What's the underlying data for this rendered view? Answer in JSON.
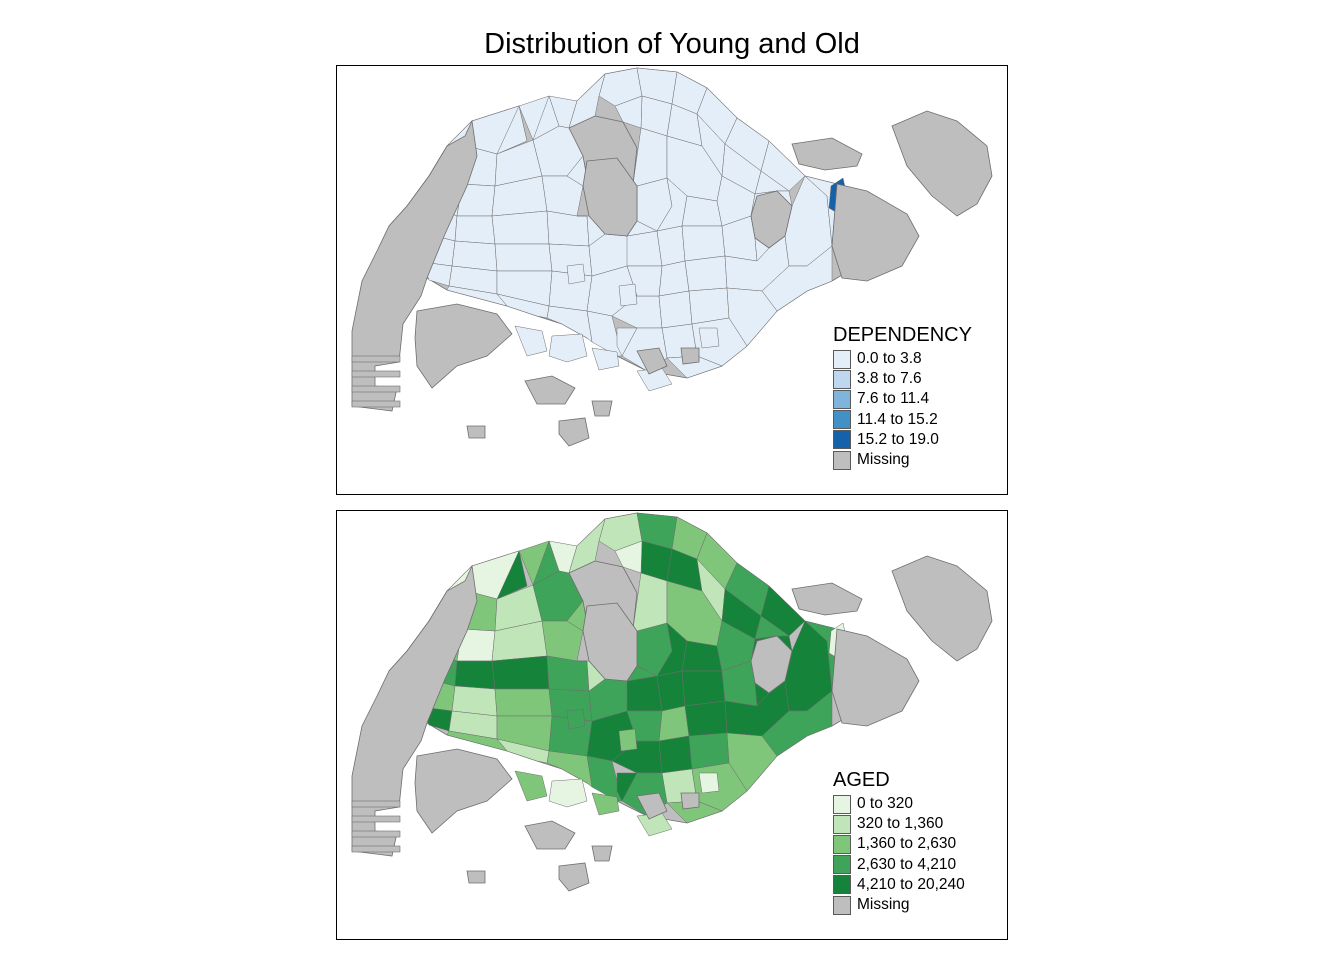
{
  "title": "Distribution of Young and Old",
  "colors": {
    "missing": "#bebebe",
    "border": "#6e6e6e",
    "sea": "#ffffff"
  },
  "maps": [
    {
      "variable": "DEPENDENCY",
      "legend": [
        {
          "label": "0.0 to 3.8",
          "color": "#e4eef9"
        },
        {
          "label": "3.8 to 7.6",
          "color": "#bdd7ee"
        },
        {
          "label": "7.6 to 11.4",
          "color": "#7fb4dc"
        },
        {
          "label": "11.4 to 15.2",
          "color": "#4190c6"
        },
        {
          "label": "15.2 to 19.0",
          "color": "#1562ab"
        },
        {
          "label": "Missing",
          "color": "#bebebe"
        }
      ],
      "zone_classes": [
        0,
        0,
        0,
        0,
        0,
        0,
        0,
        0,
        0,
        0,
        0,
        0,
        0,
        0,
        0,
        0,
        0,
        0,
        0,
        0,
        0,
        0,
        0,
        0,
        0,
        0,
        0,
        0,
        0,
        0,
        0,
        0,
        0,
        0,
        0,
        0,
        0,
        0,
        0,
        0,
        0,
        0,
        0,
        0,
        0,
        0,
        0,
        0,
        0,
        0,
        0,
        0,
        0,
        0,
        0,
        0,
        0,
        0,
        0,
        0,
        0,
        0,
        0,
        0,
        0,
        0,
        0,
        0,
        0,
        0,
        0,
        0,
        0,
        4,
        0,
        0,
        0,
        0,
        0,
        0,
        0,
        0,
        0,
        0,
        0,
        0,
        0,
        0
      ]
    },
    {
      "variable": "AGED",
      "legend": [
        {
          "label": "0 to 320",
          "color": "#e6f5e1"
        },
        {
          "label": "320 to 1,360",
          "color": "#bfe5b8"
        },
        {
          "label": "1,360 to 2,630",
          "color": "#7fc67b"
        },
        {
          "label": "2,630 to 4,210",
          "color": "#3ea45a"
        },
        {
          "label": "4,210 to 20,240",
          "color": "#16833b"
        },
        {
          "label": "Missing",
          "color": "#bebebe"
        }
      ],
      "zone_classes": [
        0,
        2,
        0,
        1,
        3,
        2,
        4,
        4,
        2,
        1,
        3,
        4,
        4,
        3,
        2,
        1,
        3,
        2,
        0,
        1,
        2,
        3,
        4,
        4,
        3,
        2,
        1,
        2,
        3,
        4,
        1,
        2,
        3,
        4,
        4,
        3,
        1,
        2,
        4,
        4,
        3,
        4,
        4,
        3,
        2,
        4,
        4,
        4,
        3,
        4,
        4,
        3,
        2,
        1,
        2,
        3,
        3,
        2,
        1,
        2,
        3,
        1,
        2,
        3,
        2,
        4,
        3,
        4,
        4,
        4,
        3,
        4,
        3,
        0,
        1,
        0,
        1,
        0,
        2,
        1,
        0,
        2,
        0,
        1,
        0,
        2,
        3,
        2
      ]
    }
  ]
}
